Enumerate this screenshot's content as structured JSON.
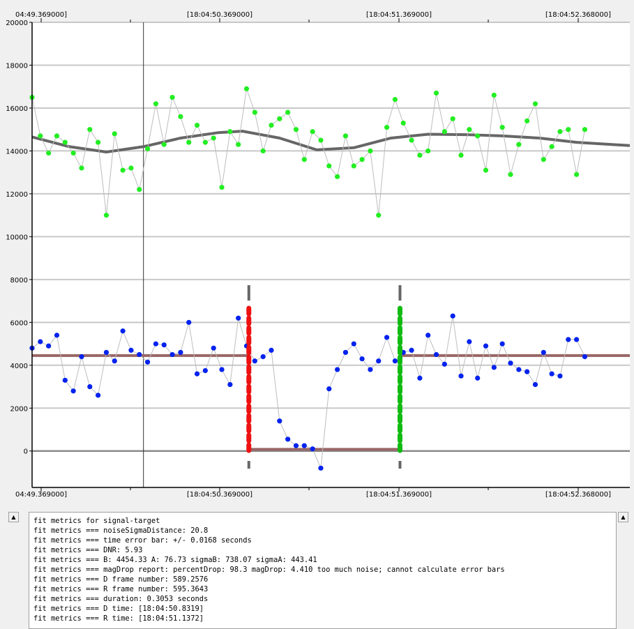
{
  "chart_data": {
    "type": "scatter",
    "top_ticks": [
      "04:49.369000]",
      "[18:04:50.369000]",
      "[18:04:51.369000]",
      "[18:04:52.368000]"
    ],
    "bottom_ticks": [
      "04:49.369000]",
      "[18:04:50.369000]",
      "[18:04:51.369000]",
      "[18:04:52.368000]"
    ],
    "y_ticks": [
      0,
      2000,
      4000,
      6000,
      8000,
      10000,
      12000,
      14000,
      16000,
      18000,
      20000
    ],
    "ylim": [
      -1700,
      20000
    ],
    "frame_range": [
      580.5,
      604.65
    ],
    "grid": true,
    "cursor_frame": 585.0,
    "d_frame": 589.2576,
    "r_frame": 595.3643,
    "reference_series": {
      "name": "",
      "color": "#22ee22",
      "frames_start": 580.5,
      "frames_step": 0.3333,
      "values": [
        16500,
        14700,
        13900,
        14700,
        14400,
        13900,
        13200,
        15000,
        14400,
        11000,
        14800,
        13100,
        13200,
        12200,
        14100,
        16200,
        14300,
        16500,
        15600,
        14400,
        15200,
        14400,
        14600,
        12300,
        14900,
        14300,
        16900,
        15800,
        14000,
        15200,
        15500,
        15800,
        15000,
        13600,
        14900,
        14500,
        13300,
        12800,
        14700,
        13300,
        13600,
        14000,
        11000,
        15100,
        16400,
        15300,
        14500,
        13800,
        14000,
        16700,
        14900,
        15500,
        13800,
        15000,
        14700,
        13100,
        16600,
        15100,
        12900,
        14300,
        15400,
        16200,
        13600,
        14200,
        14900,
        15000,
        12900,
        15000
      ]
    },
    "reference_fit": {
      "color": "#666666",
      "points": [
        [
          580.5,
          14650
        ],
        [
          582.0,
          14200
        ],
        [
          583.5,
          13950
        ],
        [
          585.0,
          14200
        ],
        [
          586.5,
          14600
        ],
        [
          588.0,
          14850
        ],
        [
          589.0,
          14920
        ],
        [
          590.5,
          14600
        ],
        [
          592.0,
          14050
        ],
        [
          593.5,
          14150
        ],
        [
          595.0,
          14600
        ],
        [
          596.5,
          14780
        ],
        [
          598.0,
          14760
        ],
        [
          599.5,
          14700
        ],
        [
          601.0,
          14600
        ],
        [
          602.5,
          14400
        ],
        [
          604.65,
          14250
        ]
      ]
    },
    "target_series": {
      "name": "",
      "color": "#0022ee",
      "frames_start": 580.5,
      "frames_step": 0.3333,
      "values": [
        4800,
        5100,
        4900,
        5400,
        3300,
        2800,
        4400,
        3000,
        2600,
        4600,
        4200,
        5600,
        4700,
        4500,
        4150,
        5000,
        4950,
        4500,
        4600,
        6000,
        3600,
        3750,
        4800,
        3800,
        3100,
        6200,
        4900,
        4200,
        4400,
        4700,
        1400,
        550,
        250,
        250,
        100,
        -800,
        2900,
        3800,
        4600,
        5000,
        4300,
        3800,
        4200,
        5300,
        4200,
        4600,
        4700,
        3400,
        5400,
        4500,
        4050,
        6300,
        3500,
        5100,
        3400,
        4900,
        3900,
        5000,
        4100,
        3800,
        3700,
        3100,
        4600,
        3600,
        3500,
        5200,
        5200,
        4400
      ]
    },
    "target_fit": {
      "color": "#996666",
      "baseline_B": 4454.33,
      "bottom_A": 76.73
    },
    "d_edge_color": "#ee1111",
    "r_edge_color": "#11bb11"
  },
  "console": {
    "lines": [
      "fit metrics for signal-target",
      "fit metrics === noiseSigmaDistance: 20.8",
      "fit metrics === time error bar: +/- 0.0168 seconds",
      "fit metrics === DNR: 5.93",
      "fit metrics === B: 4454.33 A: 76.73 sigmaB: 738.07 sigmaA: 443.41",
      "fit metrics === magDrop report: percentDrop: 98.3 magDrop: 4.410 too much noise; cannot calculate error bars",
      "fit metrics === D frame number: 589.2576",
      "fit metrics === R frame number: 595.3643",
      "fit metrics === duration: 0.3053 seconds",
      "fit metrics === D time: [18:04:50.8319]",
      "fit metrics === R time: [18:04:51.1372]"
    ]
  }
}
